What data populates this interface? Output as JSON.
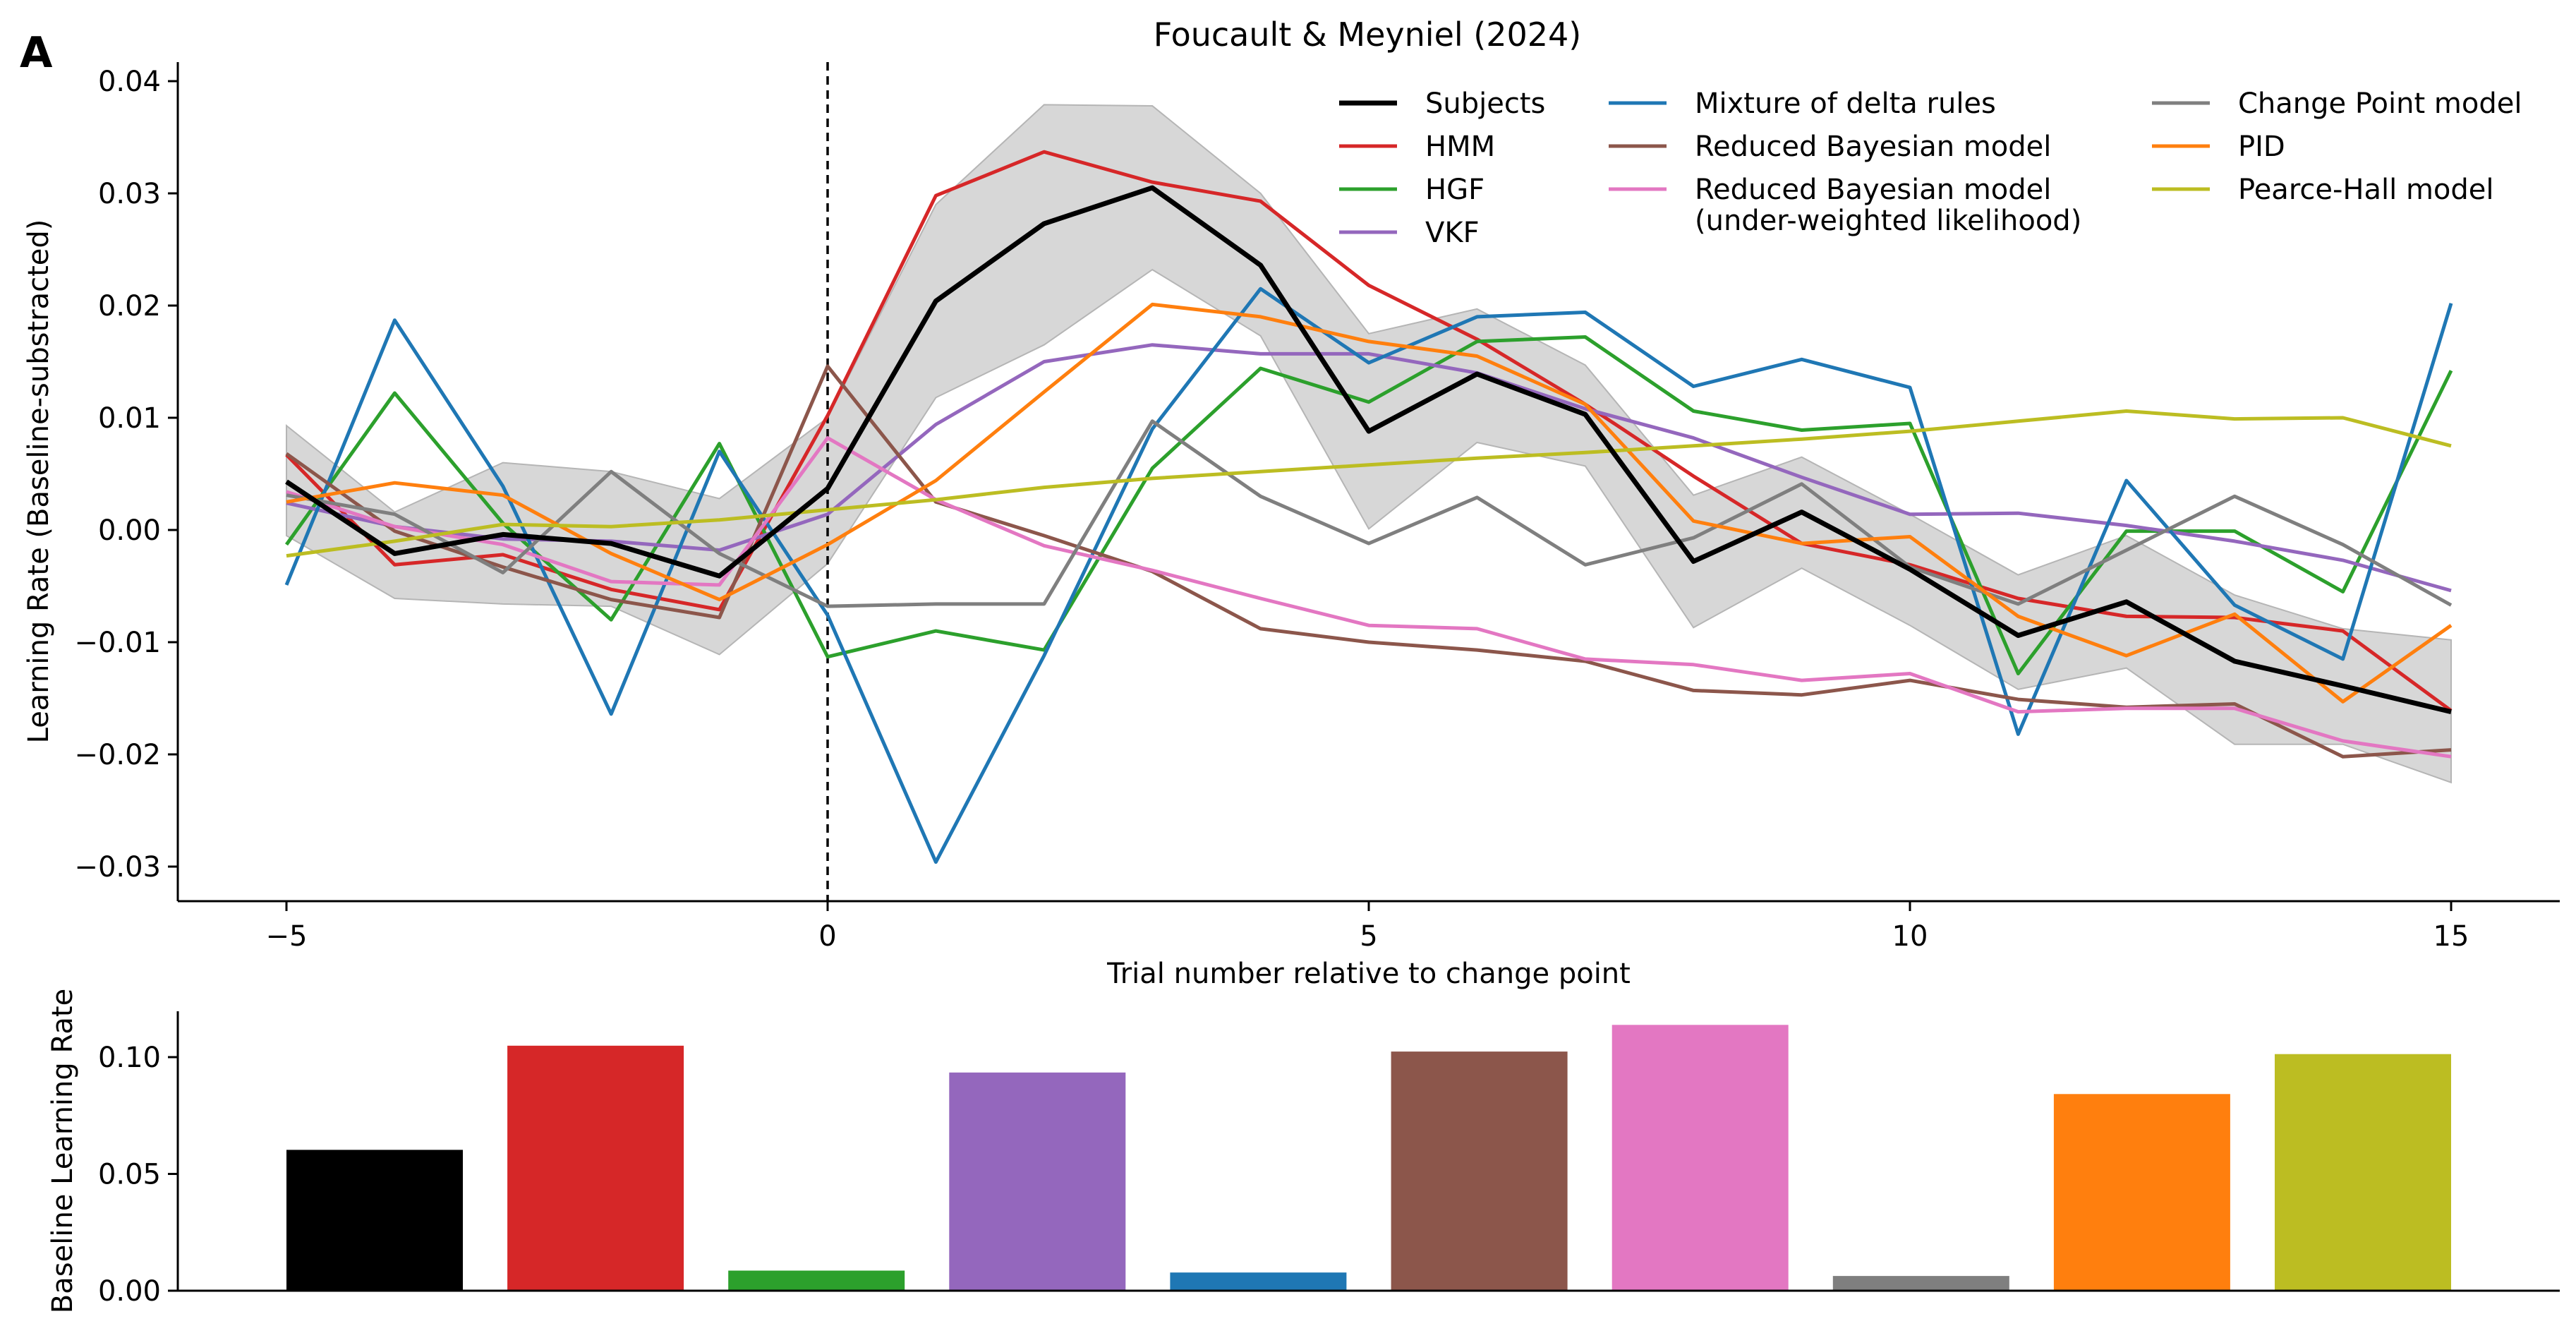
{
  "panel_label": "A",
  "chart_data": [
    {
      "type": "line",
      "title": "Foucault & Meyniel (2024)",
      "xlabel": "Trial number relative to change point",
      "ylabel": "Learning Rate (Baseline-substracted)",
      "xlim": [
        -6,
        16
      ],
      "ylim": [
        -0.033,
        0.0415
      ],
      "xticks": [
        -5,
        0,
        5,
        10,
        15
      ],
      "xtick_labels": [
        "−5",
        "0",
        "5",
        "10",
        "15"
      ],
      "yticks": [
        -0.03,
        -0.02,
        -0.01,
        0.0,
        0.01,
        0.02,
        0.03,
        0.04
      ],
      "ytick_labels": [
        "−0.03",
        "−0.02",
        "−0.01",
        "0.00",
        "0.01",
        "0.02",
        "0.03",
        "0.04"
      ],
      "change_point_line": 0,
      "legend_location": "top-right",
      "x": [
        -5,
        -4,
        -3,
        -2,
        -1,
        0,
        1,
        2,
        3,
        4,
        5,
        6,
        7,
        8,
        9,
        10,
        11,
        12,
        13,
        14,
        15
      ],
      "series": [
        {
          "name": "Subjects",
          "color": "#000000",
          "width": 7,
          "values": [
            0.0043,
            -0.0021,
            -0.0004,
            -0.0012,
            -0.0041,
            0.0037,
            0.0204,
            0.0273,
            0.0305,
            0.0236,
            0.0088,
            0.0139,
            0.0103,
            -0.0028,
            0.0016,
            -0.0035,
            -0.0094,
            -0.0064,
            -0.0117,
            -0.0139,
            -0.0162
          ],
          "band_lower": [
            -0.0005,
            -0.0061,
            -0.0066,
            -0.0068,
            -0.0111,
            -0.003,
            0.0118,
            0.0165,
            0.0232,
            0.0173,
            0.0001,
            0.0078,
            0.0057,
            -0.0087,
            -0.0034,
            -0.0085,
            -0.0142,
            -0.0123,
            -0.0191,
            -0.0191,
            -0.0225
          ],
          "band_upper": [
            0.0093,
            0.0016,
            0.006,
            0.0052,
            0.0028,
            0.01,
            0.029,
            0.0379,
            0.0378,
            0.03,
            0.0175,
            0.0197,
            0.0147,
            0.0031,
            0.0065,
            0.0014,
            -0.004,
            -0.0005,
            -0.0058,
            -0.0088,
            -0.0098
          ],
          "band_color": "#d3d3d3"
        },
        {
          "name": "HMM",
          "color": "#d62728",
          "width": 5,
          "values": [
            0.0067,
            -0.0031,
            -0.0022,
            -0.0053,
            -0.0071,
            0.0102,
            0.0298,
            0.0337,
            0.031,
            0.0293,
            0.0218,
            0.017,
            0.0112,
            0.0048,
            -0.0012,
            -0.0031,
            -0.0061,
            -0.0077,
            -0.0078,
            -0.009,
            -0.0161
          ]
        },
        {
          "name": "HGF",
          "color": "#2ca02c",
          "width": 5,
          "values": [
            -0.0013,
            0.0122,
            0.0006,
            -0.008,
            0.0077,
            -0.0113,
            -0.009,
            -0.0107,
            0.0055,
            0.0144,
            0.0114,
            0.0168,
            0.0172,
            0.0106,
            0.0089,
            0.0095,
            -0.0128,
            -0.0001,
            -0.0001,
            -0.0055,
            0.0142
          ]
        },
        {
          "name": "VKF",
          "color": "#9467bd",
          "width": 5,
          "values": [
            0.0024,
            0.0003,
            -0.0008,
            -0.001,
            -0.0018,
            0.0014,
            0.0094,
            0.015,
            0.0165,
            0.0157,
            0.0157,
            0.014,
            0.0108,
            0.0082,
            0.0047,
            0.0014,
            0.0015,
            0.0004,
            -0.001,
            -0.0027,
            -0.0054
          ]
        },
        {
          "name": "Mixture of delta rules",
          "color": "#1f77b4",
          "width": 5,
          "values": [
            -0.0049,
            0.0187,
            0.0039,
            -0.0164,
            0.007,
            -0.0076,
            -0.0296,
            -0.0112,
            0.009,
            0.0215,
            0.0149,
            0.019,
            0.0194,
            0.0128,
            0.0152,
            0.0127,
            -0.0182,
            0.0044,
            -0.0067,
            -0.0115,
            0.0202
          ]
        },
        {
          "name": "Reduced Bayesian model",
          "color": "#8c564b",
          "width": 5,
          "values": [
            0.0068,
            -0.0001,
            -0.0033,
            -0.0062,
            -0.0078,
            0.0146,
            0.0025,
            -0.0005,
            -0.0037,
            -0.0088,
            -0.01,
            -0.0107,
            -0.0117,
            -0.0143,
            -0.0147,
            -0.0134,
            -0.0151,
            -0.0158,
            -0.0155,
            -0.0202,
            -0.0196
          ]
        },
        {
          "name": "Reduced Bayesian model\n(under-weighted likelihood)",
          "color": "#e377c2",
          "width": 5,
          "values": [
            0.0034,
            0.0003,
            -0.0013,
            -0.0046,
            -0.0049,
            0.0082,
            0.0027,
            -0.0014,
            -0.0036,
            -0.0061,
            -0.0085,
            -0.0088,
            -0.0115,
            -0.012,
            -0.0134,
            -0.0128,
            -0.0162,
            -0.0159,
            -0.0159,
            -0.0188,
            -0.0202
          ]
        },
        {
          "name": "Change Point model",
          "color": "#7f7f7f",
          "width": 5,
          "values": [
            0.0031,
            0.0014,
            -0.0038,
            0.0052,
            -0.0021,
            -0.0068,
            -0.0066,
            -0.0066,
            0.0097,
            0.003,
            -0.0012,
            0.0029,
            -0.0031,
            -0.0007,
            0.0041,
            -0.0033,
            -0.0066,
            -0.0018,
            0.003,
            -0.0013,
            -0.0067
          ]
        },
        {
          "name": "PID",
          "color": "#ff7f0e",
          "width": 5,
          "values": [
            0.0025,
            0.0042,
            0.0031,
            -0.0021,
            -0.0062,
            -0.0013,
            0.0044,
            0.0123,
            0.0201,
            0.019,
            0.0168,
            0.0155,
            0.0112,
            0.0008,
            -0.0012,
            -0.0006,
            -0.0077,
            -0.0112,
            -0.0075,
            -0.0153,
            -0.0085
          ]
        },
        {
          "name": "Pearce-Hall model",
          "color": "#bcbd22",
          "width": 5,
          "values": [
            -0.0023,
            -0.001,
            0.0005,
            0.0003,
            0.0009,
            0.0018,
            0.0027,
            0.0038,
            0.0046,
            0.0052,
            0.0058,
            0.0064,
            0.0069,
            0.0075,
            0.0081,
            0.0088,
            0.0097,
            0.0106,
            0.0099,
            0.01,
            0.0075
          ]
        }
      ]
    },
    {
      "type": "bar",
      "xlabel": "",
      "ylabel": "Baseline Learning Rate",
      "ylim": [
        0.0,
        0.12
      ],
      "yticks": [
        0.0,
        0.05,
        0.1
      ],
      "ytick_labels": [
        "0.00",
        "0.05",
        "0.10"
      ],
      "categories": [
        "Subjects",
        "HMM",
        "HGF",
        "VKF",
        "Mixture of delta rules",
        "Reduced Bayesian model",
        "Reduced Bayesian model (under-weighted likelihood)",
        "Change Point model",
        "PID",
        "Pearce-Hall model"
      ],
      "values": [
        0.0603,
        0.1049,
        0.0086,
        0.0934,
        0.0078,
        0.1024,
        0.1138,
        0.0063,
        0.0842,
        0.1013
      ],
      "colors": [
        "#000000",
        "#d62728",
        "#2ca02c",
        "#9467bd",
        "#1f77b4",
        "#8c564b",
        "#e377c2",
        "#7f7f7f",
        "#ff7f0e",
        "#bcbd22"
      ]
    }
  ]
}
